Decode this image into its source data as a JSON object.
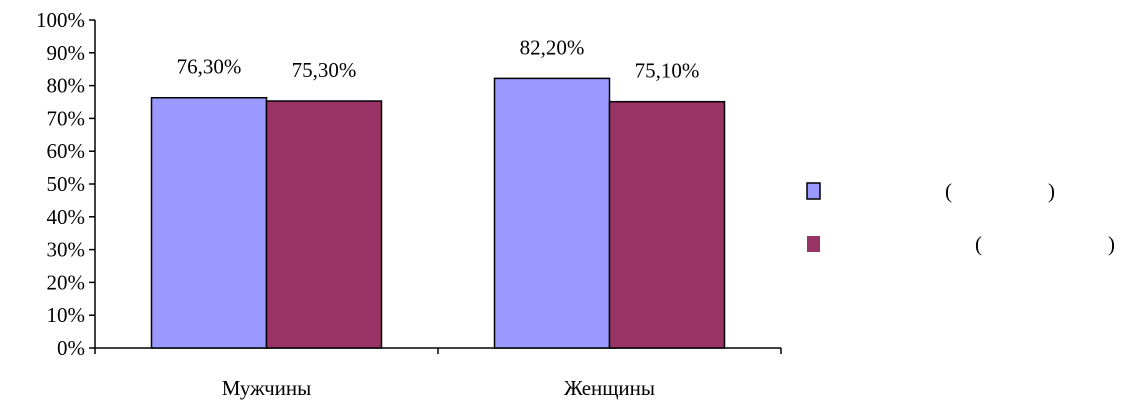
{
  "chart_data": {
    "type": "bar",
    "categories": [
      "Мужчины",
      "Женщины"
    ],
    "series": [
      {
        "values": [
          76.3,
          82.2
        ],
        "labels": [
          "76,30%",
          "82,20%"
        ],
        "color": "#9999ff"
      },
      {
        "values": [
          75.3,
          75.1
        ],
        "labels": [
          "75,30%",
          "75,10%"
        ],
        "color": "#993366"
      }
    ],
    "ylim": [
      0,
      100
    ],
    "yticks": [
      "0%",
      "10%",
      "20%",
      "30%",
      "40%",
      "50%",
      "60%",
      "70%",
      "80%",
      "90%",
      "100%"
    ],
    "legend": {
      "placement": "right",
      "entries": [
        {
          "text": "(      )"
        },
        {
          "text": "(         )"
        }
      ]
    },
    "grid": false,
    "title": "",
    "xlabel": "",
    "ylabel": ""
  }
}
